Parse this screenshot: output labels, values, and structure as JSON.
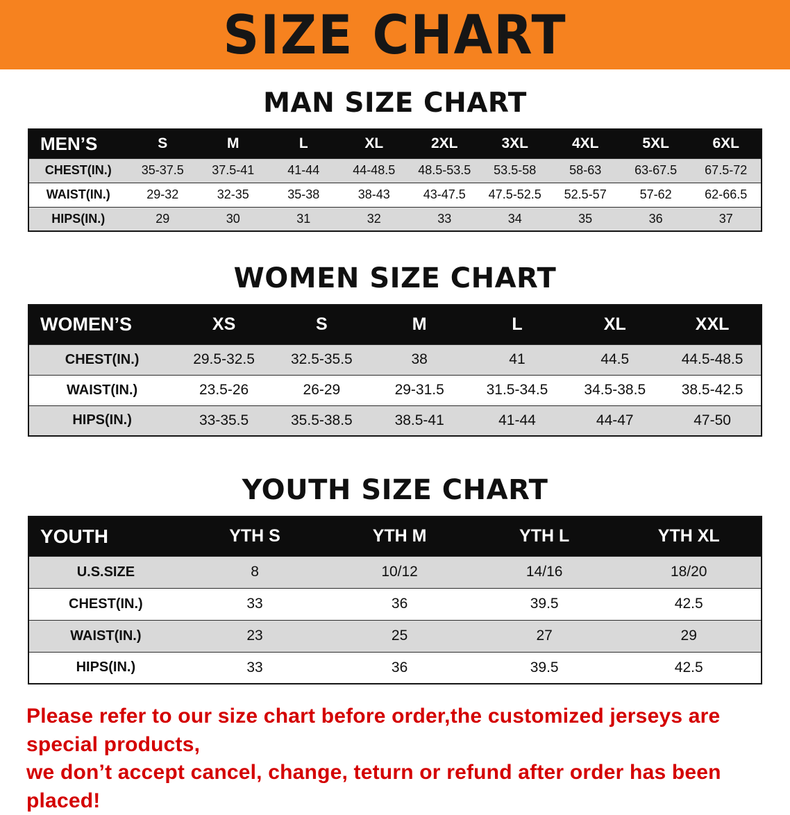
{
  "banner": {
    "title": "SIZE CHART"
  },
  "sections": [
    {
      "id": "men",
      "heading": "MAN SIZE CHART",
      "table": {
        "header": [
          "MEN’S",
          "S",
          "M",
          "L",
          "XL",
          "2XL",
          "3XL",
          "4XL",
          "5XL",
          "6XL"
        ],
        "rows": [
          [
            "CHEST(IN.)",
            "35-37.5",
            "37.5-41",
            "41-44",
            "44-48.5",
            "48.5-53.5",
            "53.5-58",
            "58-63",
            "63-67.5",
            "67.5-72"
          ],
          [
            "WAIST(IN.)",
            "29-32",
            "32-35",
            "35-38",
            "38-43",
            "43-47.5",
            "47.5-52.5",
            "52.5-57",
            "57-62",
            "62-66.5"
          ],
          [
            "HIPS(IN.)",
            "29",
            "30",
            "31",
            "32",
            "33",
            "34",
            "35",
            "36",
            "37"
          ]
        ]
      }
    },
    {
      "id": "women",
      "heading": "WOMEN SIZE CHART",
      "table": {
        "header": [
          "WOMEN’S",
          "XS",
          "S",
          "M",
          "L",
          "XL",
          "XXL"
        ],
        "rows": [
          [
            "CHEST(IN.)",
            "29.5-32.5",
            "32.5-35.5",
            "38",
            "41",
            "44.5",
            "44.5-48.5"
          ],
          [
            "WAIST(IN.)",
            "23.5-26",
            "26-29",
            "29-31.5",
            "31.5-34.5",
            "34.5-38.5",
            "38.5-42.5"
          ],
          [
            "HIPS(IN.)",
            "33-35.5",
            "35.5-38.5",
            "38.5-41",
            "41-44",
            "44-47",
            "47-50"
          ]
        ]
      }
    },
    {
      "id": "youth",
      "heading": "YOUTH SIZE CHART",
      "table": {
        "header": [
          "YOUTH",
          "YTH S",
          "YTH M",
          "YTH L",
          "YTH XL"
        ],
        "rows": [
          [
            "U.S.SIZE",
            "8",
            "10/12",
            "14/16",
            "18/20"
          ],
          [
            "CHEST(IN.)",
            "33",
            "36",
            "39.5",
            "42.5"
          ],
          [
            "WAIST(IN.)",
            "23",
            "25",
            "27",
            "29"
          ],
          [
            "HIPS(IN.)",
            "33",
            "36",
            "39.5",
            "42.5"
          ]
        ]
      }
    }
  ],
  "disclaimer": {
    "line1": "Please refer to our size chart before order,the customized jerseys are special products,",
    "line2": "we don’t accept cancel, change, teturn or refund after order has been placed!"
  },
  "colors": {
    "banner_bg": "#F6821F",
    "header_bg": "#0D0D0D",
    "row_stripe": "#D9D9D9",
    "disclaimer_text": "#D40000"
  }
}
